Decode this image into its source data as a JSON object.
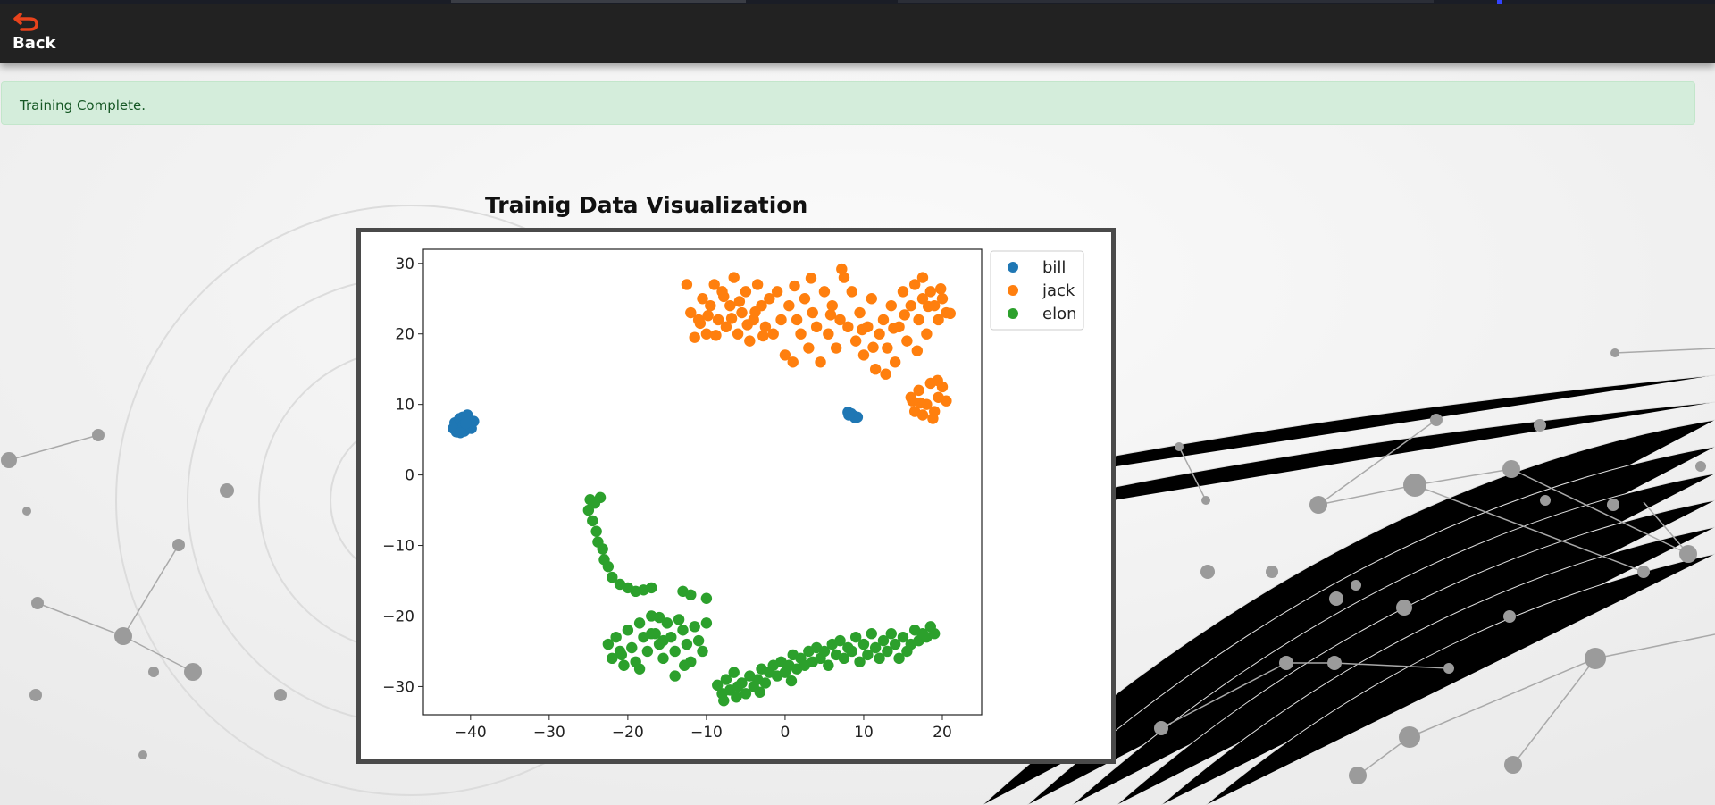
{
  "header": {
    "back_label": "Back",
    "back_icon": "undo-arrow-icon",
    "back_icon_color": "#e8431c"
  },
  "alert": {
    "message": "Training Complete.",
    "background": "#d4eddb",
    "text_color": "#155724"
  },
  "visualization": {
    "title": "Trainig Data Visualization"
  },
  "chart_data": {
    "type": "scatter",
    "title": "",
    "xlabel": "",
    "ylabel": "",
    "xlim": [
      -46,
      25
    ],
    "ylim": [
      -34,
      32
    ],
    "xticks": [
      -40,
      -30,
      -20,
      -10,
      0,
      10,
      20
    ],
    "yticks": [
      -30,
      -20,
      -10,
      0,
      10,
      20,
      30
    ],
    "grid": false,
    "legend_position": "outside-top-right",
    "series": [
      {
        "name": "bill",
        "color": "#1f77b4",
        "points": [
          [
            -41.5,
            7.0
          ],
          [
            -41.0,
            8.2
          ],
          [
            -40.5,
            6.5
          ],
          [
            -41.8,
            6.1
          ],
          [
            -40.2,
            7.8
          ],
          [
            -41.2,
            7.5
          ],
          [
            -40.8,
            6.2
          ],
          [
            -42.0,
            7.4
          ],
          [
            -39.6,
            7.6
          ],
          [
            -41.6,
            6.8
          ],
          [
            -40.4,
            8.5
          ],
          [
            -41.4,
            8.0
          ],
          [
            -40.0,
            6.9
          ],
          [
            -42.2,
            6.6
          ],
          [
            -40.9,
            7.1
          ],
          [
            -41.3,
            6.0
          ],
          [
            -39.9,
            6.6
          ],
          [
            -40.6,
            7.3
          ],
          [
            8.0,
            8.9
          ],
          [
            8.7,
            8.4
          ],
          [
            9.2,
            8.2
          ],
          [
            8.4,
            8.7
          ],
          [
            8.9,
            8.1
          ],
          [
            8.1,
            8.5
          ]
        ]
      },
      {
        "name": "jack",
        "color": "#ff7f0e",
        "points": [
          [
            -12.5,
            27
          ],
          [
            -12,
            23
          ],
          [
            -11,
            22
          ],
          [
            -10.5,
            25
          ],
          [
            -10,
            20
          ],
          [
            -9.5,
            24
          ],
          [
            -9,
            27
          ],
          [
            -8.5,
            22
          ],
          [
            -8,
            26
          ],
          [
            -7.5,
            21
          ],
          [
            -7,
            24
          ],
          [
            -6.5,
            28
          ],
          [
            -6,
            20
          ],
          [
            -5.5,
            23
          ],
          [
            -5,
            26
          ],
          [
            -4.5,
            19
          ],
          [
            -4,
            22
          ],
          [
            -3.5,
            27
          ],
          [
            -3,
            24
          ],
          [
            -2.5,
            21
          ],
          [
            -2,
            25
          ],
          [
            -1.5,
            20
          ],
          [
            -1,
            26
          ],
          [
            -0.5,
            22
          ],
          [
            0,
            17
          ],
          [
            0.5,
            24
          ],
          [
            1,
            16
          ],
          [
            1.5,
            22
          ],
          [
            2,
            20
          ],
          [
            2.5,
            25
          ],
          [
            3,
            18
          ],
          [
            3.5,
            23
          ],
          [
            4,
            21
          ],
          [
            4.5,
            16
          ],
          [
            5,
            26
          ],
          [
            5.5,
            20
          ],
          [
            6,
            24
          ],
          [
            6.5,
            18
          ],
          [
            7,
            22
          ],
          [
            7.5,
            28
          ],
          [
            8,
            21
          ],
          [
            8.5,
            26
          ],
          [
            9,
            19
          ],
          [
            9.5,
            23
          ],
          [
            10,
            17
          ],
          [
            10.5,
            21
          ],
          [
            11,
            25
          ],
          [
            11.5,
            15
          ],
          [
            12,
            20
          ],
          [
            12.5,
            22
          ],
          [
            13,
            18
          ],
          [
            13.5,
            24
          ],
          [
            14,
            16
          ],
          [
            14.5,
            21
          ],
          [
            15,
            26
          ],
          [
            15.5,
            19
          ],
          [
            16,
            24
          ],
          [
            16.5,
            27
          ],
          [
            17,
            22
          ],
          [
            17.5,
            25
          ],
          [
            18,
            20
          ],
          [
            18.5,
            26
          ],
          [
            19,
            24
          ],
          [
            19.5,
            22
          ],
          [
            20,
            25
          ],
          [
            20.5,
            23
          ],
          [
            -11.5,
            19.5
          ],
          [
            -10.8,
            21.5
          ],
          [
            -9.8,
            22.6
          ],
          [
            -8.8,
            19.8
          ],
          [
            -7.8,
            25.3
          ],
          [
            -6.8,
            22.2
          ],
          [
            -5.8,
            24.6
          ],
          [
            -4.8,
            21.3
          ],
          [
            -3.8,
            23.1
          ],
          [
            -2.8,
            19.7
          ],
          [
            1.2,
            26.8
          ],
          [
            3.3,
            27.9
          ],
          [
            5.8,
            22.7
          ],
          [
            7.2,
            29.2
          ],
          [
            9.8,
            20.6
          ],
          [
            11.2,
            18.1
          ],
          [
            12.8,
            14.3
          ],
          [
            15.2,
            22.7
          ],
          [
            16.8,
            17.6
          ],
          [
            18.2,
            23.9
          ],
          [
            21.0,
            22.9
          ],
          [
            19.8,
            26.4
          ],
          [
            17.5,
            28.0
          ],
          [
            13.8,
            20.8
          ],
          [
            16.0,
            11
          ],
          [
            16.5,
            9
          ],
          [
            17,
            12
          ],
          [
            17.5,
            8.5
          ],
          [
            18,
            10
          ],
          [
            18.5,
            13
          ],
          [
            19,
            9
          ],
          [
            19.5,
            11
          ],
          [
            20,
            12.5
          ],
          [
            20.5,
            10.5
          ],
          [
            17.2,
            10.2
          ],
          [
            18.8,
            8.0
          ],
          [
            16.2,
            10.5
          ],
          [
            19.4,
            13.4
          ]
        ]
      },
      {
        "name": "elon",
        "color": "#2ca02c",
        "points": [
          [
            -25,
            -5
          ],
          [
            -24.8,
            -3.5
          ],
          [
            -24.5,
            -6.5
          ],
          [
            -24.2,
            -4
          ],
          [
            -24,
            -8
          ],
          [
            -23.8,
            -9.5
          ],
          [
            -23.5,
            -3.2
          ],
          [
            -23.2,
            -10.5
          ],
          [
            -23,
            -12
          ],
          [
            -22.5,
            -13
          ],
          [
            -22,
            -14.5
          ],
          [
            -21,
            -15.5
          ],
          [
            -20,
            -16
          ],
          [
            -19,
            -16.5
          ],
          [
            -18,
            -16.3
          ],
          [
            -17,
            -16
          ],
          [
            -13,
            -16.5
          ],
          [
            -12,
            -17
          ],
          [
            -10,
            -17.5
          ],
          [
            -22.5,
            -24
          ],
          [
            -22,
            -26
          ],
          [
            -21.5,
            -23
          ],
          [
            -21,
            -25
          ],
          [
            -20.5,
            -27
          ],
          [
            -20,
            -22
          ],
          [
            -19.5,
            -24.5
          ],
          [
            -19,
            -26.5
          ],
          [
            -18.5,
            -21
          ],
          [
            -18,
            -23
          ],
          [
            -17.5,
            -25
          ],
          [
            -17,
            -20
          ],
          [
            -16.5,
            -22.5
          ],
          [
            -16,
            -24
          ],
          [
            -15.5,
            -26
          ],
          [
            -15,
            -21
          ],
          [
            -14.5,
            -23
          ],
          [
            -14,
            -25
          ],
          [
            -13.5,
            -20.5
          ],
          [
            -13,
            -22
          ],
          [
            -12.5,
            -24
          ],
          [
            -12,
            -26.5
          ],
          [
            -11.5,
            -21.5
          ],
          [
            -11,
            -23.5
          ],
          [
            -10.5,
            -25
          ],
          [
            -10,
            -21
          ],
          [
            -14,
            -28.5
          ],
          [
            -18.5,
            -27.5
          ],
          [
            -16,
            -20.2
          ],
          [
            -17,
            -22.5
          ],
          [
            -15.5,
            -23.5
          ],
          [
            -20.8,
            -25.5
          ],
          [
            -12.8,
            -27
          ],
          [
            -8,
            -31
          ],
          [
            -7.5,
            -29
          ],
          [
            -7,
            -30.5
          ],
          [
            -6.5,
            -28
          ],
          [
            -6,
            -30
          ],
          [
            -5.5,
            -29.5
          ],
          [
            -5,
            -31
          ],
          [
            -4.5,
            -28.5
          ],
          [
            -4,
            -30
          ],
          [
            -3.5,
            -29
          ],
          [
            -3,
            -27.5
          ],
          [
            -2.5,
            -29.5
          ],
          [
            -2,
            -28
          ],
          [
            -1.5,
            -27
          ],
          [
            -1,
            -28.5
          ],
          [
            -0.5,
            -26.5
          ],
          [
            0,
            -28
          ],
          [
            0.5,
            -27
          ],
          [
            1,
            -25.5
          ],
          [
            1.5,
            -27.5
          ],
          [
            2,
            -26
          ],
          [
            2.5,
            -27
          ],
          [
            3,
            -25
          ],
          [
            3.5,
            -26.5
          ],
          [
            4,
            -24.5
          ],
          [
            4.5,
            -26
          ],
          [
            5,
            -25
          ],
          [
            5.5,
            -27
          ],
          [
            6,
            -24
          ],
          [
            6.5,
            -25.5
          ],
          [
            7,
            -23.5
          ],
          [
            7.5,
            -26
          ],
          [
            8,
            -24.5
          ],
          [
            8.5,
            -25
          ],
          [
            9,
            -23
          ],
          [
            9.5,
            -26.5
          ],
          [
            10,
            -24
          ],
          [
            10.5,
            -25.5
          ],
          [
            11,
            -22.5
          ],
          [
            11.5,
            -24.5
          ],
          [
            12,
            -26
          ],
          [
            12.5,
            -23.5
          ],
          [
            13,
            -25
          ],
          [
            13.5,
            -22.5
          ],
          [
            14,
            -24
          ],
          [
            14.5,
            -26
          ],
          [
            15,
            -23
          ],
          [
            15.5,
            -25
          ],
          [
            16,
            -24
          ],
          [
            16.5,
            -22
          ],
          [
            17,
            -23.5
          ],
          [
            17.5,
            -22.5
          ],
          [
            18,
            -23
          ],
          [
            18.5,
            -21.5
          ],
          [
            19,
            -22.5
          ],
          [
            -7.8,
            -32
          ],
          [
            -6.2,
            -31.5
          ],
          [
            -3.2,
            -30.8
          ],
          [
            0.8,
            -29.2
          ],
          [
            -8.6,
            -29.8
          ]
        ]
      }
    ]
  }
}
